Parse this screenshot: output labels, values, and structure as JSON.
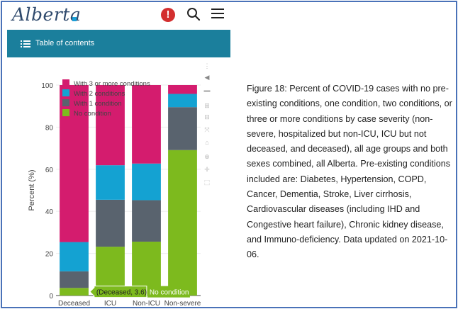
{
  "header": {
    "logo_text": "Alberta",
    "alert_icon": "exclamation-circle-icon",
    "search_icon": "search-icon",
    "menu_icon": "hamburger-menu-icon"
  },
  "toc": {
    "label": "Table of contents",
    "icon": "list-icon"
  },
  "chart_data": {
    "type": "bar",
    "stacked": true,
    "categories": [
      "Deceased",
      "ICU",
      "Non-ICU",
      "Non-severe"
    ],
    "ylabel": "Percent (%)",
    "xlabel": "",
    "ylim": [
      0,
      100
    ],
    "yticks": [
      0,
      20,
      40,
      60,
      80,
      100
    ],
    "grid": true,
    "legend_position": "top-left",
    "series": [
      {
        "name": "No condition",
        "color": "#7dba1e",
        "values": [
          3.6,
          23.2,
          25.6,
          69.1
        ]
      },
      {
        "name": "With 1 condition",
        "color": "#59636e",
        "values": [
          7.9,
          22.3,
          19.7,
          20.4
        ]
      },
      {
        "name": "With 2 conditions",
        "color": "#14a2d2",
        "values": [
          13.9,
          16.4,
          17.4,
          6.3
        ]
      },
      {
        "name": "With 3 or more conditions",
        "color": "#d41c6e",
        "values": [
          74.6,
          38.1,
          37.3,
          4.2
        ]
      }
    ],
    "legend_order": [
      "With 3 or more conditions",
      "With 2 conditions",
      "With 1 condition",
      "No condition"
    ],
    "hover": {
      "text": "(Deceased, 3.6)",
      "series_label": "No condition"
    }
  },
  "modebar_icons": [
    "camera-icon",
    "zoom-icon",
    "pan-icon",
    "zoom-in-icon",
    "zoom-out-icon",
    "autoscale-icon",
    "reset-axes-icon",
    "toggle-spike-lines-icon",
    "hover-closest-icon",
    "hover-compare-icon",
    "plotly-logo-icon"
  ],
  "caption": "Figure 18: Percent of COVID-19 cases with no pre-existing conditions, one condition, two conditions, or three or more conditions by case severity (non-severe, hospitalized but non-ICU, ICU but not deceased, and deceased), all age groups and both sexes combined, all Alberta. Pre-existing conditions included are: Diabetes, Hypertension, COPD, Cancer, Dementia, Stroke, Liver cirrhosis, Cardiovascular diseases (including IHD and Congestive heart failure), Chronic kidney disease, and Immuno-deficiency. Data updated on 2021-10-06."
}
